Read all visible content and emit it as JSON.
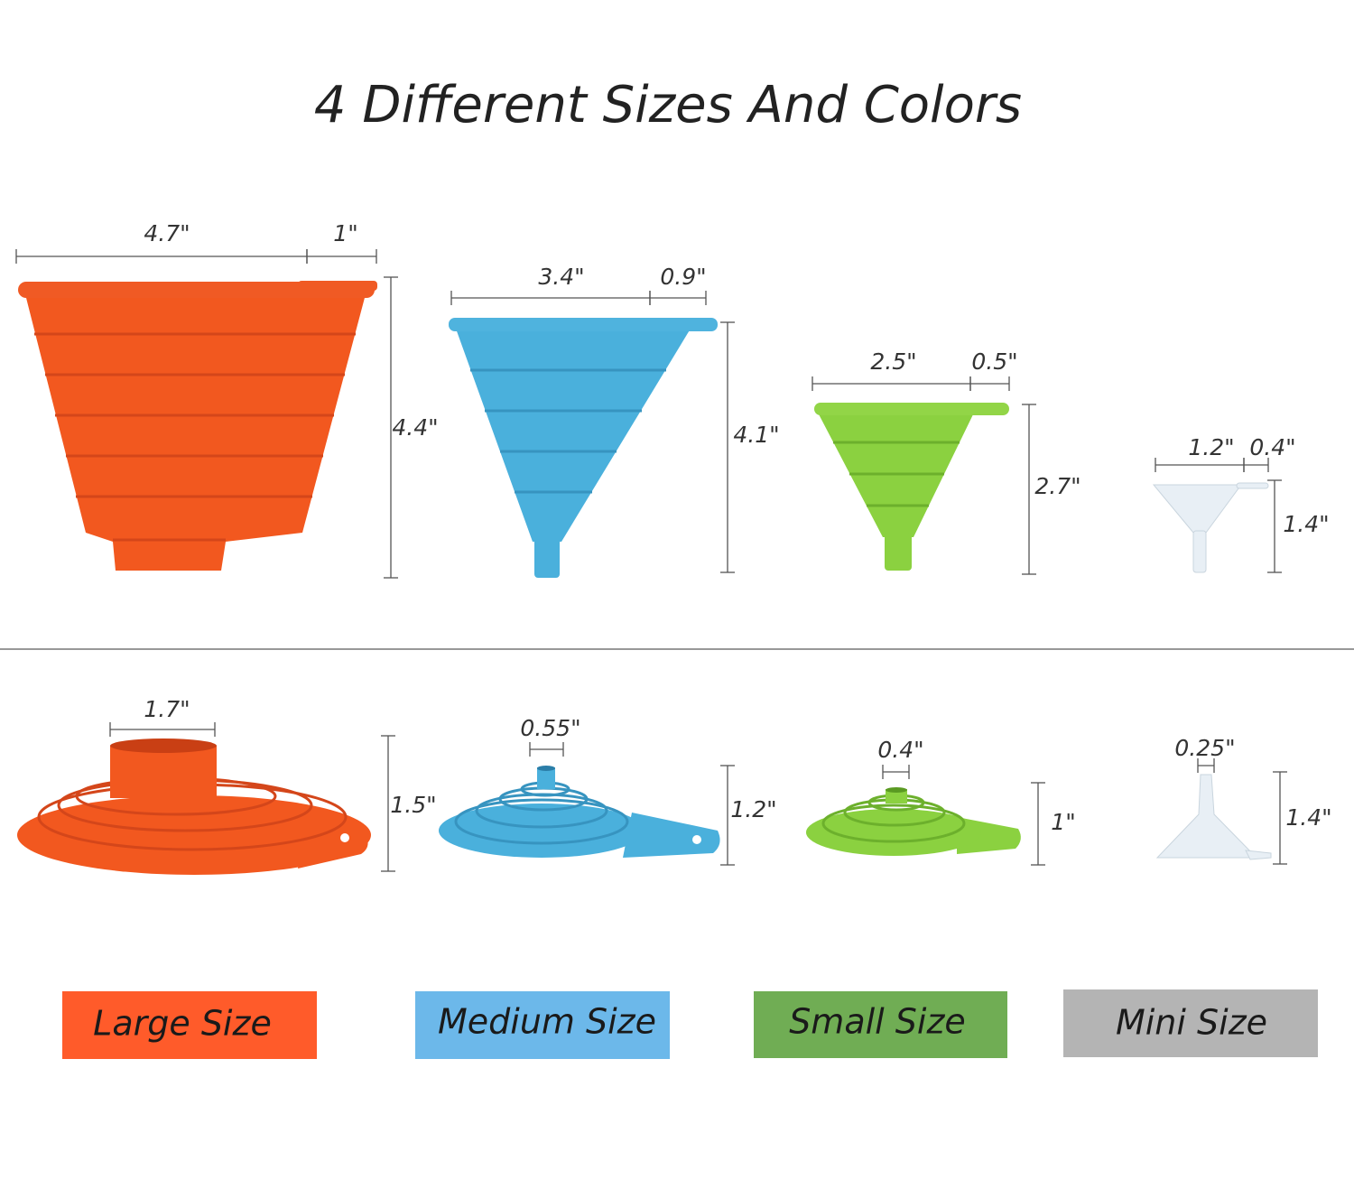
{
  "title": "4 Different Sizes And Colors",
  "expanded": [
    {
      "width": "4.7\"",
      "handle": "1\"",
      "height": "4.4\""
    },
    {
      "width": "3.4\"",
      "handle": "0.9\"",
      "height": "4.1\""
    },
    {
      "width": "2.5\"",
      "handle": "0.5\"",
      "height": "2.7\""
    },
    {
      "width": "1.2\"",
      "handle": "0.4\"",
      "height": "1.4\""
    }
  ],
  "collapsed": [
    {
      "top": "1.7\"",
      "height": "1.5\""
    },
    {
      "top": "0.55\"",
      "height": "1.2\""
    },
    {
      "top": "0.4\"",
      "height": "1\""
    },
    {
      "top": "0.25\"",
      "height": "1.4\""
    }
  ],
  "labels": [
    "Large Size",
    "Medium Size",
    "Small Size",
    "Mini Size"
  ]
}
